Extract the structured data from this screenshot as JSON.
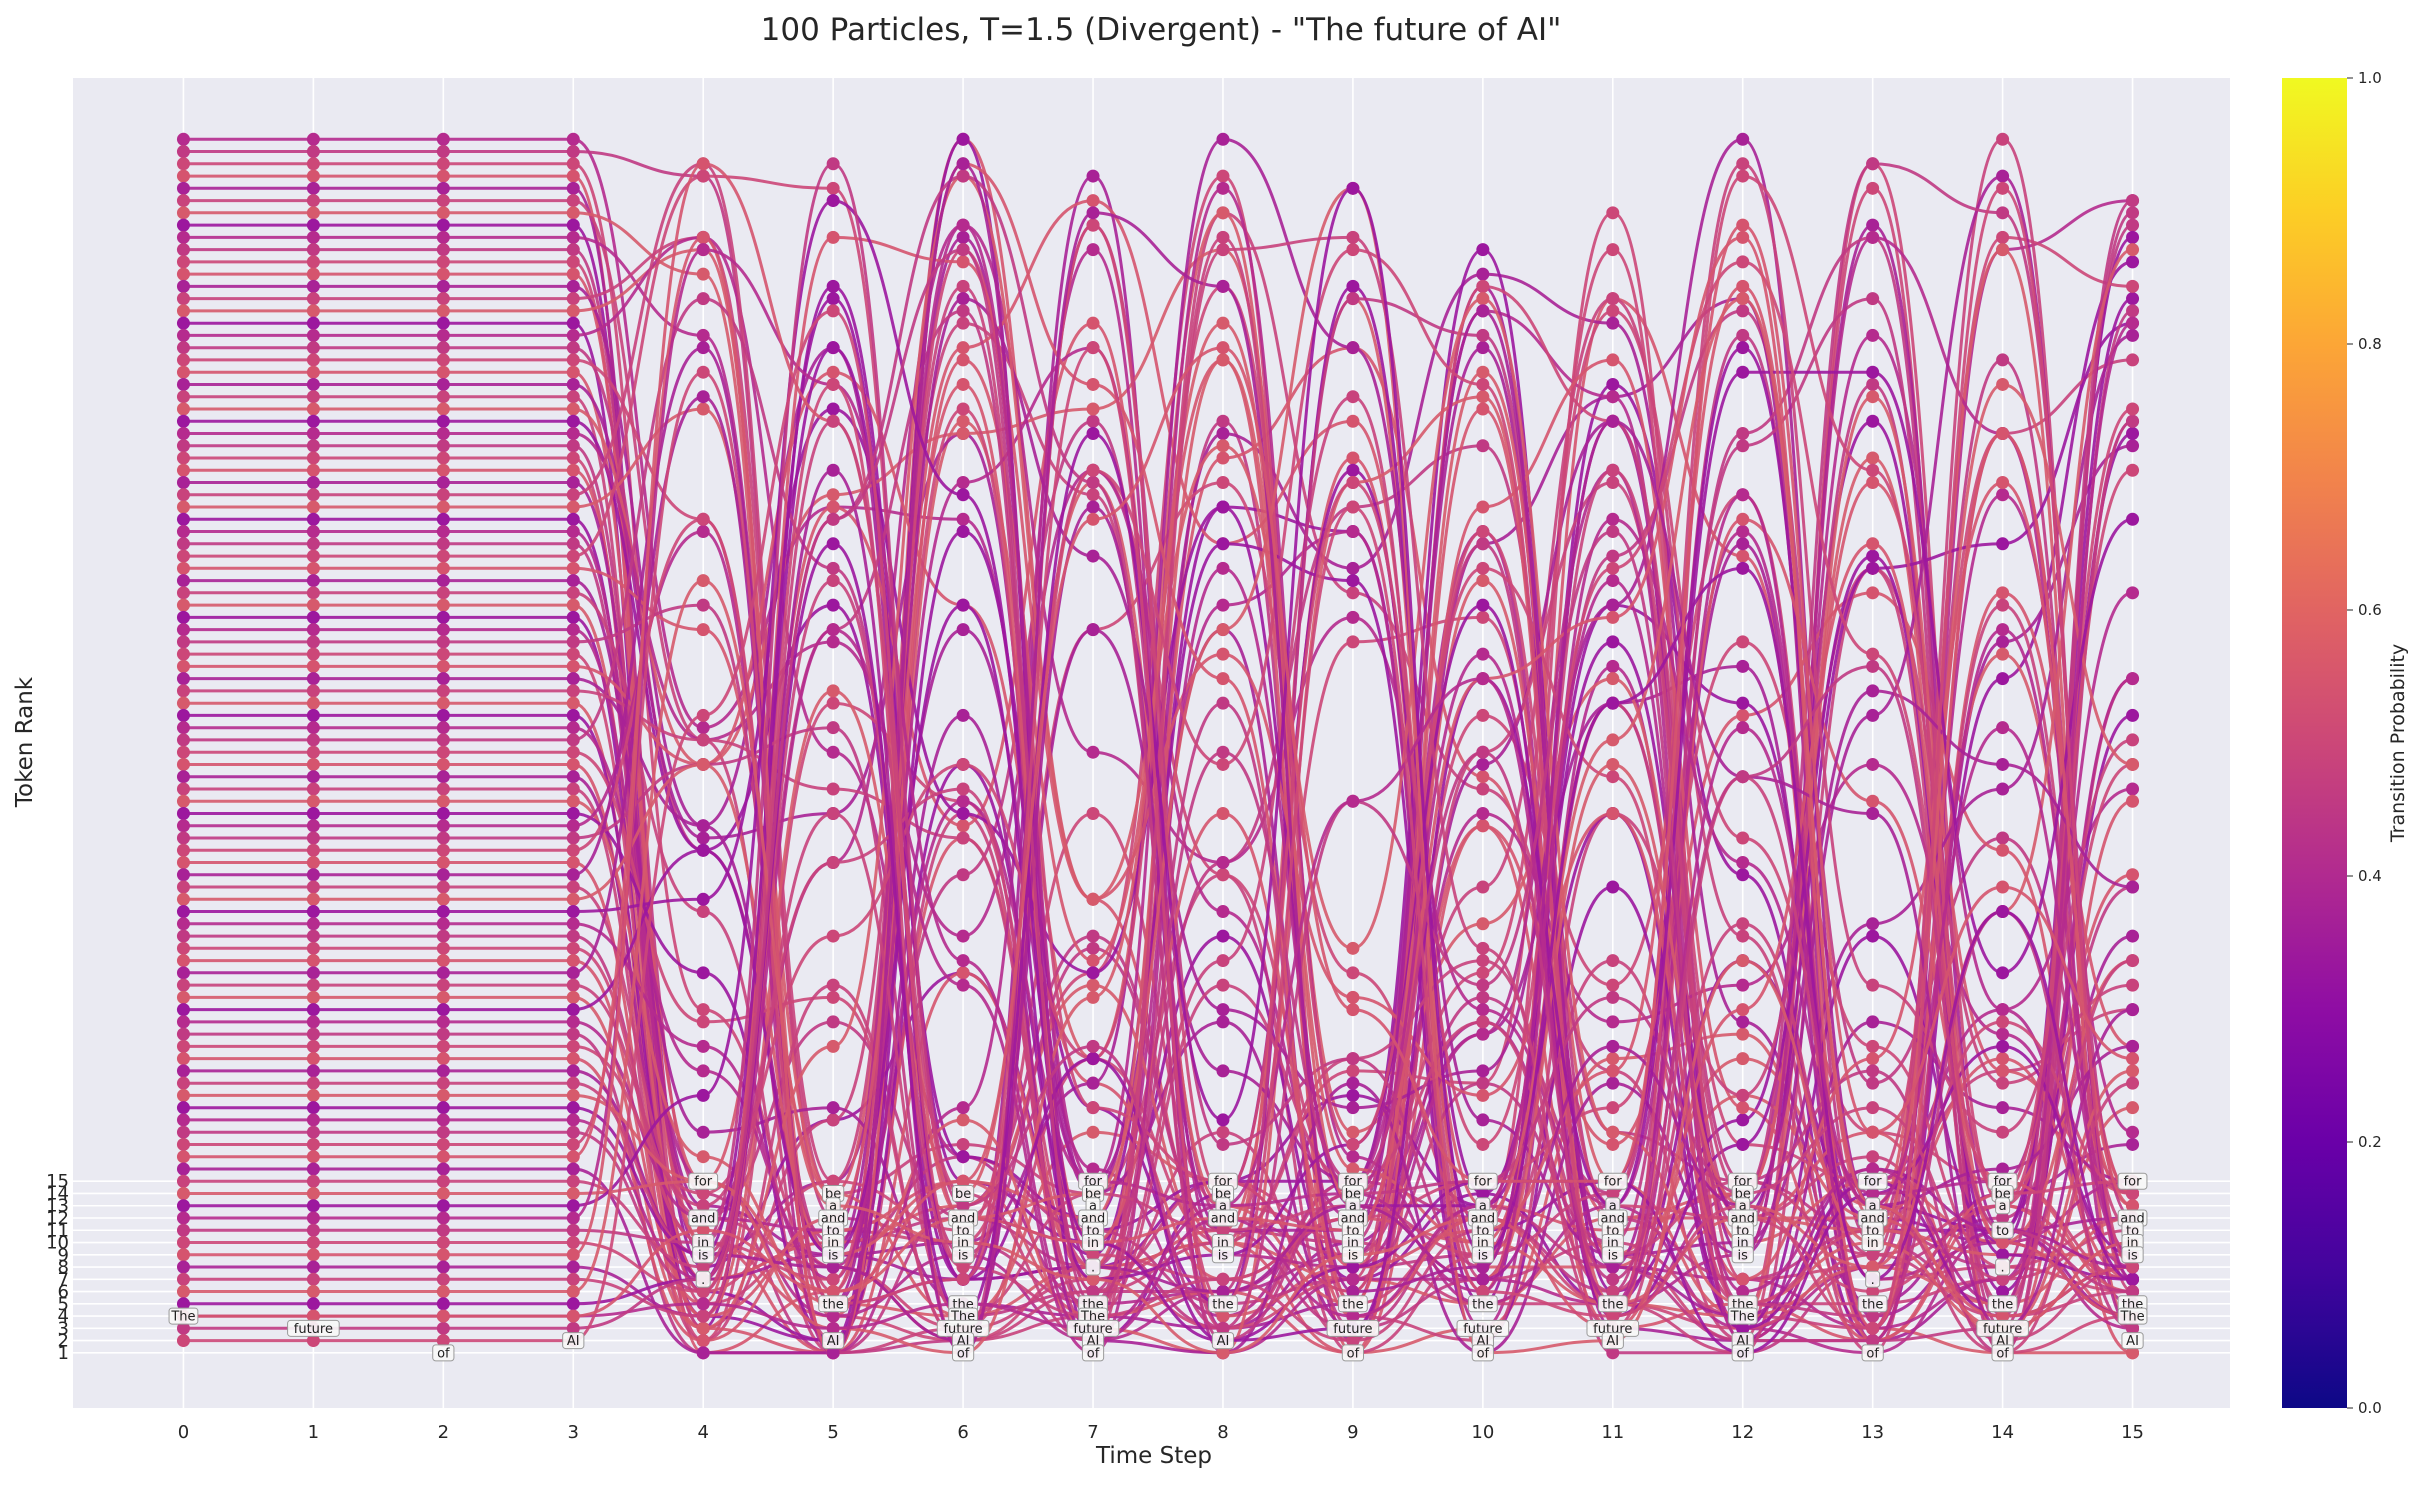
{
  "chart_data": {
    "type": "line",
    "title": "100 Particles, T=1.5 (Divergent) - \"The future of AI\"",
    "xlabel": "Time Step",
    "ylabel": "Token Rank",
    "x": [
      0,
      1,
      2,
      3,
      4,
      5,
      6,
      7,
      8,
      9,
      10,
      11,
      12,
      13,
      14,
      15
    ],
    "xlim": [
      -0.85,
      15.75
    ],
    "ylim": [
      -3.5,
      105
    ],
    "y_ticks": [
      1,
      2,
      3,
      4,
      5,
      6,
      7,
      8,
      9,
      10,
      11,
      12,
      13,
      14,
      15
    ],
    "grid": true,
    "particle_count": 100,
    "colorbar": {
      "label": "Transition Probability",
      "colormap": "plasma",
      "range": [
        0.0,
        1.0
      ],
      "ticks": [
        "0.0",
        "0.2",
        "0.4",
        "0.6",
        "0.8",
        "1.0"
      ]
    },
    "token_labels": [
      {
        "step": 0,
        "rank": 4,
        "token": "The"
      },
      {
        "step": 1,
        "rank": 3,
        "token": "future"
      },
      {
        "step": 2,
        "rank": 1,
        "token": "of"
      },
      {
        "step": 3,
        "rank": 2,
        "token": "AI"
      },
      {
        "step": 4,
        "rank": 15,
        "token": "for"
      },
      {
        "step": 4,
        "rank": 12,
        "token": "and"
      },
      {
        "step": 4,
        "rank": 10,
        "token": "in"
      },
      {
        "step": 4,
        "rank": 9,
        "token": "is"
      },
      {
        "step": 4,
        "rank": 7,
        "token": "."
      },
      {
        "step": 5,
        "rank": 14,
        "token": "be"
      },
      {
        "step": 5,
        "rank": 13,
        "token": "a"
      },
      {
        "step": 5,
        "rank": 12,
        "token": "and"
      },
      {
        "step": 5,
        "rank": 11,
        "token": "to"
      },
      {
        "step": 5,
        "rank": 10,
        "token": "in"
      },
      {
        "step": 5,
        "rank": 9,
        "token": "is"
      },
      {
        "step": 5,
        "rank": 5,
        "token": "the"
      },
      {
        "step": 5,
        "rank": 2,
        "token": "AI"
      },
      {
        "step": 6,
        "rank": 14,
        "token": "be"
      },
      {
        "step": 6,
        "rank": 12,
        "token": "and"
      },
      {
        "step": 6,
        "rank": 11,
        "token": "to"
      },
      {
        "step": 6,
        "rank": 10,
        "token": "in"
      },
      {
        "step": 6,
        "rank": 9,
        "token": "is"
      },
      {
        "step": 6,
        "rank": 5,
        "token": "the"
      },
      {
        "step": 6,
        "rank": 4,
        "token": "The"
      },
      {
        "step": 6,
        "rank": 3,
        "token": "future"
      },
      {
        "step": 6,
        "rank": 2,
        "token": "AI"
      },
      {
        "step": 6,
        "rank": 1,
        "token": "of"
      },
      {
        "step": 7,
        "rank": 15,
        "token": "for"
      },
      {
        "step": 7,
        "rank": 14,
        "token": "be"
      },
      {
        "step": 7,
        "rank": 13,
        "token": "a"
      },
      {
        "step": 7,
        "rank": 12,
        "token": "and"
      },
      {
        "step": 7,
        "rank": 11,
        "token": "to"
      },
      {
        "step": 7,
        "rank": 10,
        "token": "in"
      },
      {
        "step": 7,
        "rank": 8,
        "token": "."
      },
      {
        "step": 7,
        "rank": 5,
        "token": "the"
      },
      {
        "step": 7,
        "rank": 4,
        "token": "The"
      },
      {
        "step": 7,
        "rank": 3,
        "token": "future"
      },
      {
        "step": 7,
        "rank": 2,
        "token": "AI"
      },
      {
        "step": 7,
        "rank": 1,
        "token": "of"
      },
      {
        "step": 8,
        "rank": 15,
        "token": "for"
      },
      {
        "step": 8,
        "rank": 14,
        "token": "be"
      },
      {
        "step": 8,
        "rank": 13,
        "token": "a"
      },
      {
        "step": 8,
        "rank": 12,
        "token": "and"
      },
      {
        "step": 8,
        "rank": 10,
        "token": "in"
      },
      {
        "step": 8,
        "rank": 9,
        "token": "is"
      },
      {
        "step": 8,
        "rank": 5,
        "token": "the"
      },
      {
        "step": 8,
        "rank": 2,
        "token": "AI"
      },
      {
        "step": 9,
        "rank": 15,
        "token": "for"
      },
      {
        "step": 9,
        "rank": 14,
        "token": "be"
      },
      {
        "step": 9,
        "rank": 13,
        "token": "a"
      },
      {
        "step": 9,
        "rank": 12,
        "token": "and"
      },
      {
        "step": 9,
        "rank": 11,
        "token": "to"
      },
      {
        "step": 9,
        "rank": 10,
        "token": "in"
      },
      {
        "step": 9,
        "rank": 9,
        "token": "is"
      },
      {
        "step": 9,
        "rank": 5,
        "token": "the"
      },
      {
        "step": 9,
        "rank": 3,
        "token": "future"
      },
      {
        "step": 9,
        "rank": 1,
        "token": "of"
      },
      {
        "step": 10,
        "rank": 15,
        "token": "for"
      },
      {
        "step": 10,
        "rank": 13,
        "token": "a"
      },
      {
        "step": 10,
        "rank": 12,
        "token": "and"
      },
      {
        "step": 10,
        "rank": 11,
        "token": "to"
      },
      {
        "step": 10,
        "rank": 10,
        "token": "in"
      },
      {
        "step": 10,
        "rank": 9,
        "token": "is"
      },
      {
        "step": 10,
        "rank": 5,
        "token": "the"
      },
      {
        "step": 10,
        "rank": 3,
        "token": "future"
      },
      {
        "step": 10,
        "rank": 2,
        "token": "AI"
      },
      {
        "step": 10,
        "rank": 1,
        "token": "of"
      },
      {
        "step": 11,
        "rank": 15,
        "token": "for"
      },
      {
        "step": 11,
        "rank": 13,
        "token": "a"
      },
      {
        "step": 11,
        "rank": 12,
        "token": "and"
      },
      {
        "step": 11,
        "rank": 11,
        "token": "to"
      },
      {
        "step": 11,
        "rank": 10,
        "token": "in"
      },
      {
        "step": 11,
        "rank": 9,
        "token": "is"
      },
      {
        "step": 11,
        "rank": 5,
        "token": "the"
      },
      {
        "step": 11,
        "rank": 3,
        "token": "future"
      },
      {
        "step": 11,
        "rank": 2,
        "token": "AI"
      },
      {
        "step": 12,
        "rank": 15,
        "token": "for"
      },
      {
        "step": 12,
        "rank": 14,
        "token": "be"
      },
      {
        "step": 12,
        "rank": 13,
        "token": "a"
      },
      {
        "step": 12,
        "rank": 12,
        "token": "and"
      },
      {
        "step": 12,
        "rank": 11,
        "token": "to"
      },
      {
        "step": 12,
        "rank": 10,
        "token": "in"
      },
      {
        "step": 12,
        "rank": 9,
        "token": "is"
      },
      {
        "step": 12,
        "rank": 5,
        "token": "the"
      },
      {
        "step": 12,
        "rank": 4,
        "token": "The"
      },
      {
        "step": 12,
        "rank": 2,
        "token": "AI"
      },
      {
        "step": 12,
        "rank": 1,
        "token": "of"
      },
      {
        "step": 13,
        "rank": 15,
        "token": "for"
      },
      {
        "step": 13,
        "rank": 13,
        "token": "a"
      },
      {
        "step": 13,
        "rank": 12,
        "token": "and"
      },
      {
        "step": 13,
        "rank": 11,
        "token": "to"
      },
      {
        "step": 13,
        "rank": 10,
        "token": "in"
      },
      {
        "step": 13,
        "rank": 7,
        "token": "."
      },
      {
        "step": 13,
        "rank": 5,
        "token": "the"
      },
      {
        "step": 13,
        "rank": 1,
        "token": "of"
      },
      {
        "step": 14,
        "rank": 15,
        "token": "for"
      },
      {
        "step": 14,
        "rank": 14,
        "token": "be"
      },
      {
        "step": 14,
        "rank": 13,
        "token": "a"
      },
      {
        "step": 14,
        "rank": 11,
        "token": "to"
      },
      {
        "step": 14,
        "rank": 8,
        "token": "."
      },
      {
        "step": 14,
        "rank": 5,
        "token": "the"
      },
      {
        "step": 14,
        "rank": 3,
        "token": "future"
      },
      {
        "step": 14,
        "rank": 2,
        "token": "AI"
      },
      {
        "step": 14,
        "rank": 1,
        "token": "of"
      },
      {
        "step": 15,
        "rank": 15,
        "token": "for"
      },
      {
        "step": 15,
        "rank": 12,
        "token": "and"
      },
      {
        "step": 15,
        "rank": 11,
        "token": "to"
      },
      {
        "step": 15,
        "rank": 10,
        "token": "in"
      },
      {
        "step": 15,
        "rank": 9,
        "token": "is"
      },
      {
        "step": 15,
        "rank": 5,
        "token": "the"
      },
      {
        "step": 15,
        "rank": 4,
        "token": "The"
      },
      {
        "step": 15,
        "rank": 2,
        "token": "AI"
      }
    ]
  }
}
